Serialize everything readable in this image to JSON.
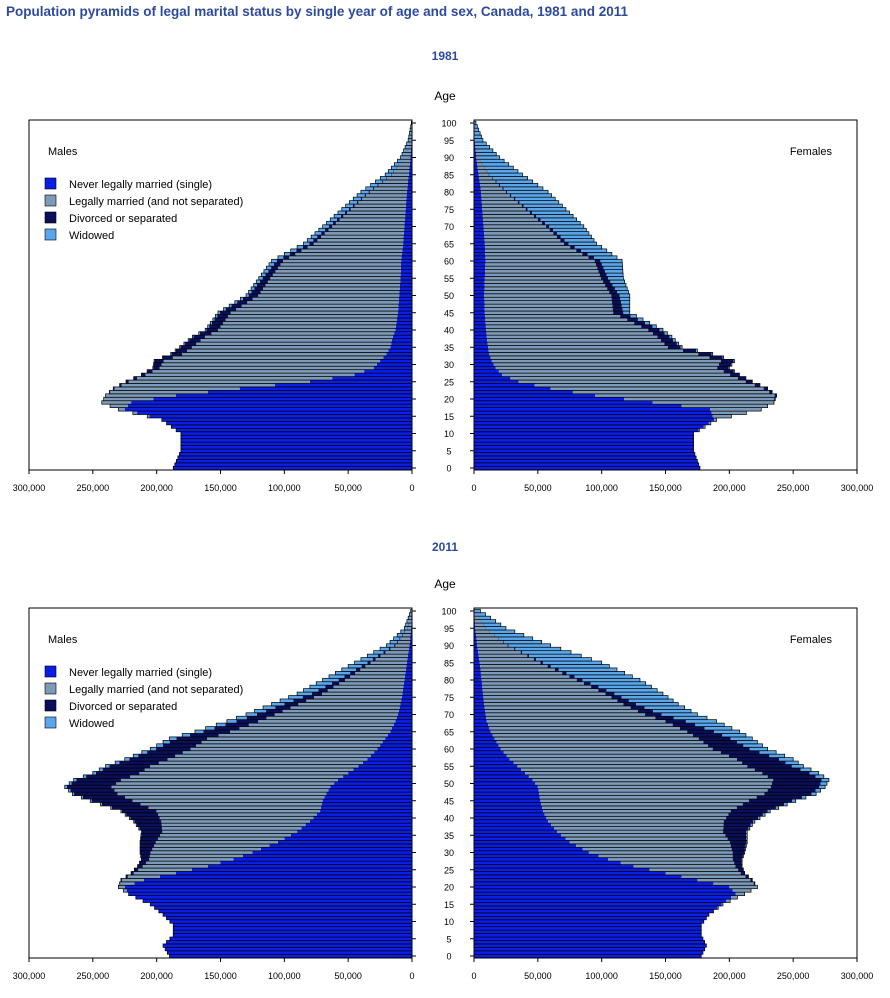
{
  "title": "Population pyramids of legal marital status by single year of age and sex, Canada, 1981 and 2011",
  "colors": {
    "single": "#0a1ee6",
    "married": "#7d9bb8",
    "divorced": "#0a0f5a",
    "widowed": "#5aa6ea",
    "outline": "#000000"
  },
  "chart_data": [
    {
      "type": "bar",
      "orientation": "horizontal-pyramid",
      "year_label": "1981",
      "y_title": "Age",
      "left_panel_label": "Males",
      "right_panel_label": "Females",
      "x_ticks_left": [
        "300,000",
        "250,000",
        "200,000",
        "150,000",
        "100,000",
        "50,000",
        "0"
      ],
      "x_ticks_right": [
        "0",
        "50,000",
        "100,000",
        "150,000",
        "200,000",
        "250,000",
        "300,000"
      ],
      "age_ticks": [
        "0",
        "5",
        "10",
        "15",
        "20",
        "25",
        "30",
        "35",
        "40",
        "45",
        "50",
        "55",
        "60",
        "65",
        "70",
        "75",
        "80",
        "85",
        "90",
        "95",
        "100"
      ],
      "xlim": [
        0,
        300000
      ],
      "ylim": [
        0,
        100
      ],
      "legend": [
        "Never legally married (single)",
        "Legally married (and not separated)",
        "Divorced or separated",
        "Widowed"
      ],
      "anchors": {
        "ages": [
          0,
          5,
          10,
          14,
          17,
          19,
          21,
          23,
          25,
          27,
          29,
          31,
          33,
          35,
          38,
          40,
          45,
          50,
          55,
          60,
          65,
          70,
          75,
          80,
          85,
          90,
          95,
          100
        ],
        "male_total": [
          187000,
          181000,
          181000,
          196000,
          230000,
          243000,
          240000,
          234000,
          224000,
          212000,
          203000,
          202000,
          189000,
          182000,
          172000,
          162000,
          152000,
          130000,
          120000,
          110000,
          85000,
          70000,
          55000,
          40000,
          21000,
          9000,
          3000,
          500
        ],
        "male_single": [
          187000,
          181000,
          181000,
          196000,
          225000,
          220000,
          185000,
          135000,
          80000,
          45000,
          30000,
          25000,
          20000,
          17000,
          15000,
          13000,
          11000,
          10000,
          9000,
          8500,
          7000,
          6000,
          5000,
          4000,
          2500,
          1200,
          400,
          100
        ],
        "male_divorced": [
          0,
          0,
          0,
          0,
          0,
          0,
          300,
          1000,
          2000,
          3000,
          5000,
          7000,
          8500,
          9000,
          9000,
          9000,
          8500,
          7500,
          6000,
          5000,
          3500,
          2500,
          1500,
          900,
          400,
          150,
          50,
          10
        ],
        "male_widowed": [
          0,
          0,
          0,
          0,
          0,
          0,
          0,
          0,
          100,
          200,
          300,
          400,
          500,
          600,
          800,
          1000,
          1500,
          2000,
          3000,
          4000,
          4500,
          5000,
          5500,
          6000,
          4500,
          2500,
          1000,
          200
        ],
        "female_total": [
          177000,
          172000,
          172000,
          190000,
          225000,
          235000,
          237000,
          230000,
          218000,
          208000,
          200000,
          204000,
          187000,
          163000,
          155000,
          148000,
          122000,
          122000,
          117000,
          116000,
          96000,
          86000,
          72000,
          58000,
          38000,
          20000,
          7000,
          1500
        ],
        "female_single": [
          177000,
          172000,
          172000,
          188000,
          185000,
          140000,
          95000,
          60000,
          35000,
          22000,
          17000,
          14000,
          12000,
          11000,
          10000,
          9500,
          8500,
          8000,
          8500,
          9000,
          8500,
          7500,
          6500,
          5500,
          3500,
          1800,
          600,
          150
        ],
        "female_divorced": [
          0,
          0,
          0,
          0,
          0,
          300,
          1500,
          3000,
          5000,
          7000,
          9000,
          10000,
          10500,
          10000,
          9500,
          9000,
          8000,
          6500,
          5500,
          4500,
          3500,
          2500,
          1500,
          1000,
          500,
          200,
          50,
          10
        ],
        "female_widowed": [
          0,
          0,
          0,
          0,
          0,
          0,
          0,
          100,
          200,
          400,
          500,
          700,
          900,
          1200,
          1800,
          2500,
          5000,
          8000,
          12000,
          17000,
          22000,
          27000,
          30000,
          32000,
          26000,
          16000,
          6000,
          1300
        ]
      }
    },
    {
      "type": "bar",
      "orientation": "horizontal-pyramid",
      "year_label": "2011",
      "y_title": "Age",
      "left_panel_label": "Males",
      "right_panel_label": "Females",
      "x_ticks_left": [
        "300,000",
        "250,000",
        "200,000",
        "150,000",
        "100,000",
        "50,000",
        "0"
      ],
      "x_ticks_right": [
        "0",
        "50,000",
        "100,000",
        "150,000",
        "200,000",
        "250,000",
        "300,000"
      ],
      "age_ticks": [
        "0",
        "5",
        "10",
        "15",
        "20",
        "25",
        "30",
        "35",
        "40",
        "45",
        "50",
        "55",
        "60",
        "65",
        "70",
        "75",
        "80",
        "85",
        "90",
        "95",
        "100"
      ],
      "xlim": [
        0,
        300000
      ],
      "ylim": [
        0,
        100
      ],
      "legend": [
        "Never legally married (single)",
        "Legally married (and not separated)",
        "Divorced or separated",
        "Widowed"
      ],
      "anchors": {
        "ages": [
          0,
          3,
          6,
          9,
          12,
          15,
          18,
          20,
          22,
          24,
          26,
          28,
          30,
          33,
          36,
          39,
          42,
          45,
          47,
          49,
          51,
          53,
          55,
          57,
          60,
          63,
          65,
          68,
          70,
          73,
          76,
          80,
          85,
          90,
          95,
          100
        ],
        "male_total": [
          190000,
          195000,
          187000,
          187000,
          195000,
          205000,
          222000,
          230000,
          228000,
          220000,
          215000,
          212000,
          213000,
          213000,
          212000,
          218000,
          228000,
          252000,
          266000,
          272000,
          265000,
          250000,
          240000,
          225000,
          205000,
          190000,
          170000,
          145000,
          130000,
          110000,
          90000,
          70000,
          45000,
          20000,
          6000,
          1000
        ],
        "male_single": [
          190000,
          195000,
          187000,
          187000,
          195000,
          205000,
          222000,
          225000,
          210000,
          185000,
          160000,
          140000,
          125000,
          105000,
          90000,
          80000,
          72000,
          70000,
          67000,
          64000,
          58000,
          50000,
          42000,
          35000,
          27000,
          21000,
          17000,
          13000,
          11000,
          9000,
          7500,
          6000,
          4000,
          2000,
          700,
          150
        ],
        "male_divorced": [
          0,
          0,
          0,
          0,
          0,
          0,
          0,
          200,
          800,
          2000,
          4000,
          6000,
          8000,
          12000,
          16000,
          21000,
          27000,
          32000,
          34000,
          35000,
          35000,
          34000,
          32000,
          30000,
          27000,
          24000,
          21000,
          17000,
          14000,
          11000,
          8000,
          5000,
          2500,
          1000,
          300,
          50
        ],
        "male_widowed": [
          0,
          0,
          0,
          0,
          0,
          0,
          0,
          0,
          0,
          50,
          100,
          150,
          200,
          300,
          400,
          600,
          800,
          1100,
          1300,
          1600,
          2000,
          2400,
          2900,
          3500,
          4500,
          5500,
          6500,
          7500,
          8500,
          10000,
          11500,
          12500,
          10000,
          6000,
          2200,
          400
        ],
        "female_total": [
          178000,
          182000,
          178000,
          178000,
          184000,
          195000,
          212000,
          222000,
          218000,
          212000,
          210000,
          210000,
          212000,
          214000,
          214000,
          220000,
          232000,
          252000,
          268000,
          275000,
          278000,
          270000,
          258000,
          250000,
          230000,
          218000,
          208000,
          190000,
          175000,
          160000,
          148000,
          130000,
          100000,
          60000,
          25000,
          5000
        ],
        "female_single": [
          178000,
          182000,
          178000,
          178000,
          184000,
          194000,
          205000,
          200000,
          175000,
          150000,
          125000,
          105000,
          90000,
          75000,
          65000,
          58000,
          54000,
          52000,
          51000,
          50000,
          46000,
          40000,
          34000,
          28000,
          21000,
          16000,
          13000,
          10000,
          9000,
          8000,
          7000,
          6000,
          4500,
          2500,
          1000,
          300
        ],
        "female_divorced": [
          0,
          0,
          0,
          0,
          0,
          0,
          0,
          300,
          1500,
          3000,
          5000,
          7000,
          9000,
          13000,
          18000,
          23000,
          29000,
          34000,
          37000,
          38000,
          38000,
          37000,
          35000,
          33000,
          29000,
          25000,
          21000,
          16000,
          13000,
          10000,
          7000,
          4500,
          2000,
          700,
          200,
          50
        ],
        "female_widowed": [
          0,
          0,
          0,
          0,
          0,
          0,
          0,
          0,
          50,
          100,
          200,
          300,
          400,
          600,
          900,
          1300,
          1900,
          2700,
          3500,
          4500,
          5700,
          7200,
          9000,
          11000,
          14000,
          17000,
          20000,
          24000,
          28000,
          33000,
          38000,
          45000,
          46000,
          33000,
          16000,
          3800
        ]
      }
    }
  ]
}
